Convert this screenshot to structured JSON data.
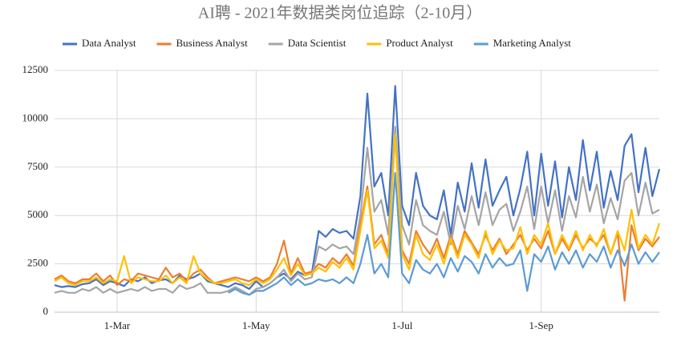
{
  "chart_data": {
    "type": "line",
    "title": "AI聘 - 2021年数据类岗位追踪（2-10月）",
    "categories": [
      null,
      null,
      null,
      null,
      null,
      null,
      null,
      null,
      null,
      "1-Mar",
      null,
      null,
      null,
      null,
      null,
      null,
      null,
      null,
      null,
      null,
      null,
      null,
      null,
      null,
      null,
      null,
      null,
      null,
      null,
      "1-May",
      null,
      null,
      null,
      null,
      null,
      null,
      null,
      null,
      null,
      null,
      null,
      null,
      null,
      null,
      null,
      null,
      null,
      null,
      null,
      null,
      "1-Jul",
      null,
      null,
      null,
      null,
      null,
      null,
      null,
      null,
      null,
      null,
      null,
      null,
      null,
      null,
      null,
      null,
      null,
      null,
      null,
      "1-Sep",
      null,
      null,
      null,
      null,
      null,
      null,
      null,
      null,
      null,
      null,
      null,
      null,
      null,
      null,
      null,
      null,
      null
    ],
    "series": [
      {
        "name": "Data Analyst",
        "color": "#4472c4",
        "values": [
          1400,
          1300,
          1350,
          1300,
          1450,
          1500,
          1700,
          1400,
          1600,
          1500,
          1350,
          1700,
          1600,
          1800,
          1500,
          1650,
          1700,
          1500,
          1900,
          1700,
          1800,
          2000,
          1600,
          1500,
          1400,
          1300,
          1500,
          1400,
          1200,
          1600,
          1300,
          1500,
          1800,
          2000,
          1700,
          2100,
          1900,
          2000,
          4200,
          3900,
          4300,
          4100,
          4200,
          3800,
          6000,
          11300,
          6500,
          7200,
          5000,
          11700,
          5500,
          4500,
          7200,
          5500,
          5000,
          4800,
          6300,
          4000,
          6700,
          5200,
          7700,
          5400,
          7900,
          5500,
          6300,
          7000,
          5000,
          6400,
          8300,
          5000,
          8200,
          5500,
          7800,
          4900,
          7500,
          5800,
          8900,
          6300,
          8300,
          5400,
          7300,
          5800,
          8600,
          9200,
          6200,
          8500,
          6000,
          7400
        ]
      },
      {
        "name": "Business Analyst",
        "color": "#ed7d31",
        "values": [
          1700,
          1900,
          1600,
          1500,
          1700,
          1700,
          2000,
          1600,
          1900,
          1400,
          1700,
          1600,
          2000,
          1900,
          1800,
          1700,
          2300,
          1800,
          2000,
          1600,
          2000,
          2200,
          1800,
          1500,
          1600,
          1700,
          1800,
          1700,
          1600,
          1800,
          1600,
          1800,
          2500,
          3700,
          2000,
          2800,
          2000,
          2100,
          2500,
          2300,
          2800,
          2500,
          3000,
          2400,
          4500,
          6500,
          3500,
          4000,
          3000,
          9300,
          3200,
          2500,
          4200,
          3500,
          3000,
          3800,
          2800,
          4000,
          3000,
          4200,
          3600,
          3000,
          4000,
          3200,
          3800,
          3000,
          3500,
          4000,
          3200,
          3800,
          3300,
          4200,
          3000,
          3800,
          3200,
          4000,
          3300,
          3800,
          3500,
          4000,
          3000,
          4100,
          600,
          4500,
          3200,
          3800,
          3400,
          3900
        ]
      },
      {
        "name": "Data Scientist",
        "color": "#a5a5a5",
        "values": [
          1000,
          1100,
          1000,
          1000,
          1200,
          1100,
          1300,
          1000,
          1200,
          1000,
          1100,
          1200,
          1100,
          1300,
          1100,
          1200,
          1200,
          1000,
          1400,
          1200,
          1300,
          1500,
          1000,
          1000,
          1000,
          1100,
          1300,
          1100,
          900,
          1200,
          1300,
          1500,
          1800,
          2200,
          1600,
          2000,
          1700,
          1800,
          3400,
          3200,
          3500,
          3300,
          3400,
          3000,
          5000,
          8500,
          5200,
          5800,
          4000,
          9600,
          4500,
          3500,
          5800,
          4500,
          4200,
          4000,
          5200,
          3500,
          5500,
          4300,
          6000,
          4500,
          6200,
          4500,
          5300,
          5600,
          4200,
          5200,
          6500,
          4300,
          6500,
          4600,
          6300,
          4200,
          6000,
          4900,
          7000,
          5200,
          6600,
          4600,
          5900,
          4800,
          6800,
          7200,
          5000,
          6700,
          5100,
          5300
        ]
      },
      {
        "name": "Product Analyst",
        "color": "#ffc000",
        "values": [
          1600,
          1800,
          1500,
          1400,
          1600,
          1600,
          1800,
          1500,
          1700,
          1600,
          2900,
          1500,
          1800,
          1700,
          1600,
          1600,
          1900,
          1500,
          1800,
          1500,
          2900,
          2000,
          1700,
          1500,
          1500,
          1600,
          1700,
          1500,
          1400,
          1700,
          1500,
          1700,
          2200,
          2800,
          1900,
          2500,
          1900,
          2000,
          2300,
          2100,
          2600,
          2300,
          2800,
          2200,
          4200,
          6300,
          3300,
          3700,
          2800,
          9200,
          3000,
          2200,
          4000,
          3000,
          2700,
          3500,
          2500,
          3800,
          2800,
          4000,
          3500,
          2800,
          4200,
          3000,
          3700,
          3200,
          3300,
          4400,
          3000,
          4000,
          3500,
          4600,
          3000,
          4000,
          3300,
          4200,
          3200,
          4000,
          3400,
          4300,
          3000,
          4200,
          3200,
          5300,
          3300,
          4000,
          3500,
          4600
        ]
      },
      {
        "name": "Marketing Analyst",
        "color": "#5b9bd5",
        "values": [
          null,
          null,
          null,
          null,
          null,
          null,
          null,
          null,
          null,
          null,
          null,
          null,
          null,
          null,
          null,
          null,
          null,
          null,
          null,
          null,
          null,
          null,
          null,
          null,
          null,
          1000,
          1200,
          1000,
          900,
          1100,
          1100,
          1300,
          1500,
          1800,
          1400,
          1700,
          1400,
          1500,
          1700,
          1600,
          1700,
          1500,
          1800,
          1500,
          2500,
          4000,
          2000,
          2500,
          1800,
          7200,
          2000,
          1500,
          2700,
          2200,
          2000,
          2500,
          1800,
          2800,
          2100,
          2900,
          2600,
          2000,
          3000,
          2300,
          2800,
          2400,
          2500,
          3200,
          1100,
          3000,
          2600,
          3400,
          2200,
          3100,
          2500,
          3200,
          2300,
          3000,
          2600,
          3400,
          2300,
          3200,
          2400,
          3500,
          2500,
          3100,
          2600,
          3100
        ]
      }
    ],
    "ylim": [
      0,
      12500
    ],
    "yticks": [
      0,
      2500,
      5000,
      7500,
      10000,
      12500
    ],
    "grid": true,
    "legend": "top"
  }
}
